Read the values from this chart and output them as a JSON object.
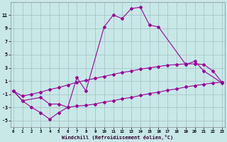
{
  "bg_color": "#c8e8e8",
  "line_color": "#990099",
  "grid_color": "#a0c0c0",
  "xlabel": "Windchill (Refroidissement éolien,°C)",
  "ylim": [
    -6,
    13
  ],
  "xlim": [
    -0.3,
    23.3
  ],
  "yticks": [
    -5,
    -3,
    -1,
    1,
    3,
    5,
    7,
    9,
    11
  ],
  "xticks": [
    0,
    1,
    2,
    3,
    4,
    5,
    6,
    7,
    8,
    9,
    10,
    11,
    12,
    13,
    14,
    15,
    16,
    17,
    18,
    19,
    20,
    21,
    22,
    23
  ],
  "main_x": [
    0,
    1,
    3,
    4,
    5,
    6,
    7,
    8,
    10,
    11,
    12,
    13,
    14,
    15,
    16,
    19,
    20,
    21,
    23
  ],
  "main_y": [
    -0.5,
    -2.0,
    -1.5,
    -2.5,
    -2.5,
    -3.0,
    1.5,
    -0.5,
    9.2,
    11.0,
    10.5,
    12.0,
    12.2,
    9.5,
    9.2,
    3.5,
    4.0,
    2.5,
    0.7
  ],
  "line1_x": [
    0,
    1,
    2,
    3,
    4,
    5,
    6,
    7,
    8,
    9,
    10,
    11,
    12,
    13,
    14,
    15,
    16,
    17,
    18,
    19,
    20,
    21,
    22,
    23
  ],
  "line1_y": [
    -0.5,
    -1.3,
    -1.0,
    -0.7,
    -0.3,
    0.0,
    0.4,
    0.8,
    1.1,
    1.4,
    1.7,
    2.0,
    2.3,
    2.5,
    2.8,
    3.0,
    3.2,
    3.4,
    3.5,
    3.6,
    3.6,
    3.5,
    2.5,
    0.8
  ],
  "line2_x": [
    0,
    1,
    2,
    3,
    4,
    5,
    6,
    7,
    8,
    9,
    10,
    11,
    12,
    13,
    14,
    15,
    16,
    17,
    18,
    19,
    20,
    21,
    22,
    23
  ],
  "line2_y": [
    -0.5,
    -2.0,
    -3.0,
    -3.8,
    -4.8,
    -3.8,
    -3.0,
    -2.8,
    -2.7,
    -2.5,
    -2.2,
    -2.0,
    -1.7,
    -1.5,
    -1.2,
    -0.9,
    -0.7,
    -0.4,
    -0.2,
    0.1,
    0.3,
    0.5,
    0.7,
    0.8
  ]
}
